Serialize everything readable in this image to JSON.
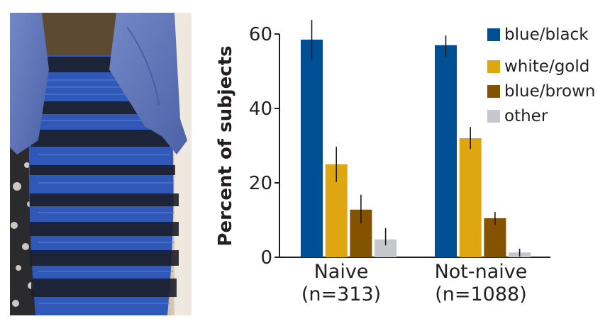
{
  "photo": {
    "description": "Photo of the dress with blue and black horizontal stripes and blue jacket"
  },
  "chart_data": {
    "type": "bar",
    "title": "",
    "xlabel": "",
    "ylabel": "Percent of subjects",
    "ylim": [
      0,
      60
    ],
    "yticks": [
      0,
      20,
      40,
      60
    ],
    "grid": false,
    "legend_position": "top-right",
    "categories": [
      "Naive",
      "Not-naive"
    ],
    "category_sublabels": [
      "(n=313)",
      "(n=1088)"
    ],
    "series": [
      {
        "name": "blue/black",
        "color": "#004f94",
        "values": [
          58.5,
          57.0
        ],
        "error_low": [
          53.1,
          53.9
        ],
        "error_high": [
          63.8,
          59.6
        ]
      },
      {
        "name": "white/gold",
        "color": "#dea610",
        "values": [
          25.0,
          32.0
        ],
        "error_low": [
          20.2,
          29.1
        ],
        "error_high": [
          29.7,
          35.0
        ]
      },
      {
        "name": "blue/brown",
        "color": "#845300",
        "values": [
          12.8,
          10.5
        ],
        "error_low": [
          9.1,
          8.6
        ],
        "error_high": [
          16.8,
          12.2
        ]
      },
      {
        "name": "other",
        "color": "#c4c8cc",
        "values": [
          4.8,
          1.3
        ],
        "error_low": [
          3.2,
          0.2
        ],
        "error_high": [
          7.8,
          2.3
        ]
      }
    ]
  },
  "axis": {
    "ylabel": "Percent of subjects",
    "ticks": [
      "0",
      "20",
      "40",
      "60"
    ]
  },
  "legend": [
    {
      "label": "blue/black",
      "color": "#004f94"
    },
    {
      "label": "white/gold",
      "color": "#dea610"
    },
    {
      "label": "blue/brown",
      "color": "#845300"
    },
    {
      "label": "other",
      "color": "#c4c8cc"
    }
  ],
  "categories": [
    {
      "label": "Naive",
      "sublabel": "(n=313)"
    },
    {
      "label": "Not-naive",
      "sublabel": "(n=1088)"
    }
  ]
}
